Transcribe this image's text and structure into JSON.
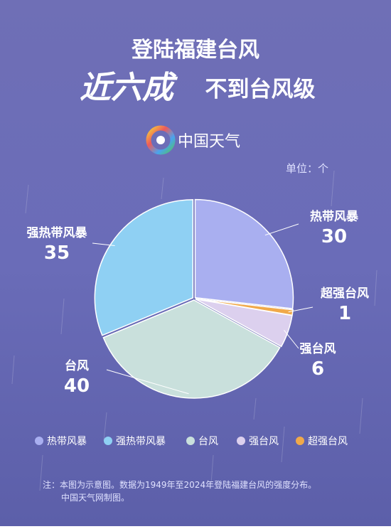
{
  "chart_data": {
    "type": "pie",
    "title_line1": "登陆福建台风",
    "title_highlight": "近六成",
    "title_rest": "不到台风级",
    "brand": "中国天气",
    "unit": "单位：个",
    "categories": [
      "热带风暴",
      "超强台风",
      "强台风",
      "台风",
      "强热带风暴"
    ],
    "values": [
      30,
      1,
      6,
      40,
      35
    ],
    "colors": [
      "#a9aff0",
      "#f0a94a",
      "#dcd0ee",
      "#c9e0dc",
      "#8fd0f3"
    ],
    "legend": [
      {
        "name": "热带风暴",
        "color": "#a9aff0"
      },
      {
        "name": "强热带风暴",
        "color": "#8fd0f3"
      },
      {
        "name": "台风",
        "color": "#c9e0dc"
      },
      {
        "name": "强台风",
        "color": "#dcd0ee"
      },
      {
        "name": "超强台风",
        "color": "#f0a94a"
      }
    ],
    "note_line1": "注：本图为示意图。数据为1949年至2024年登陆福建台风的强度分布。",
    "note_line2": "中国天气网制图。"
  }
}
